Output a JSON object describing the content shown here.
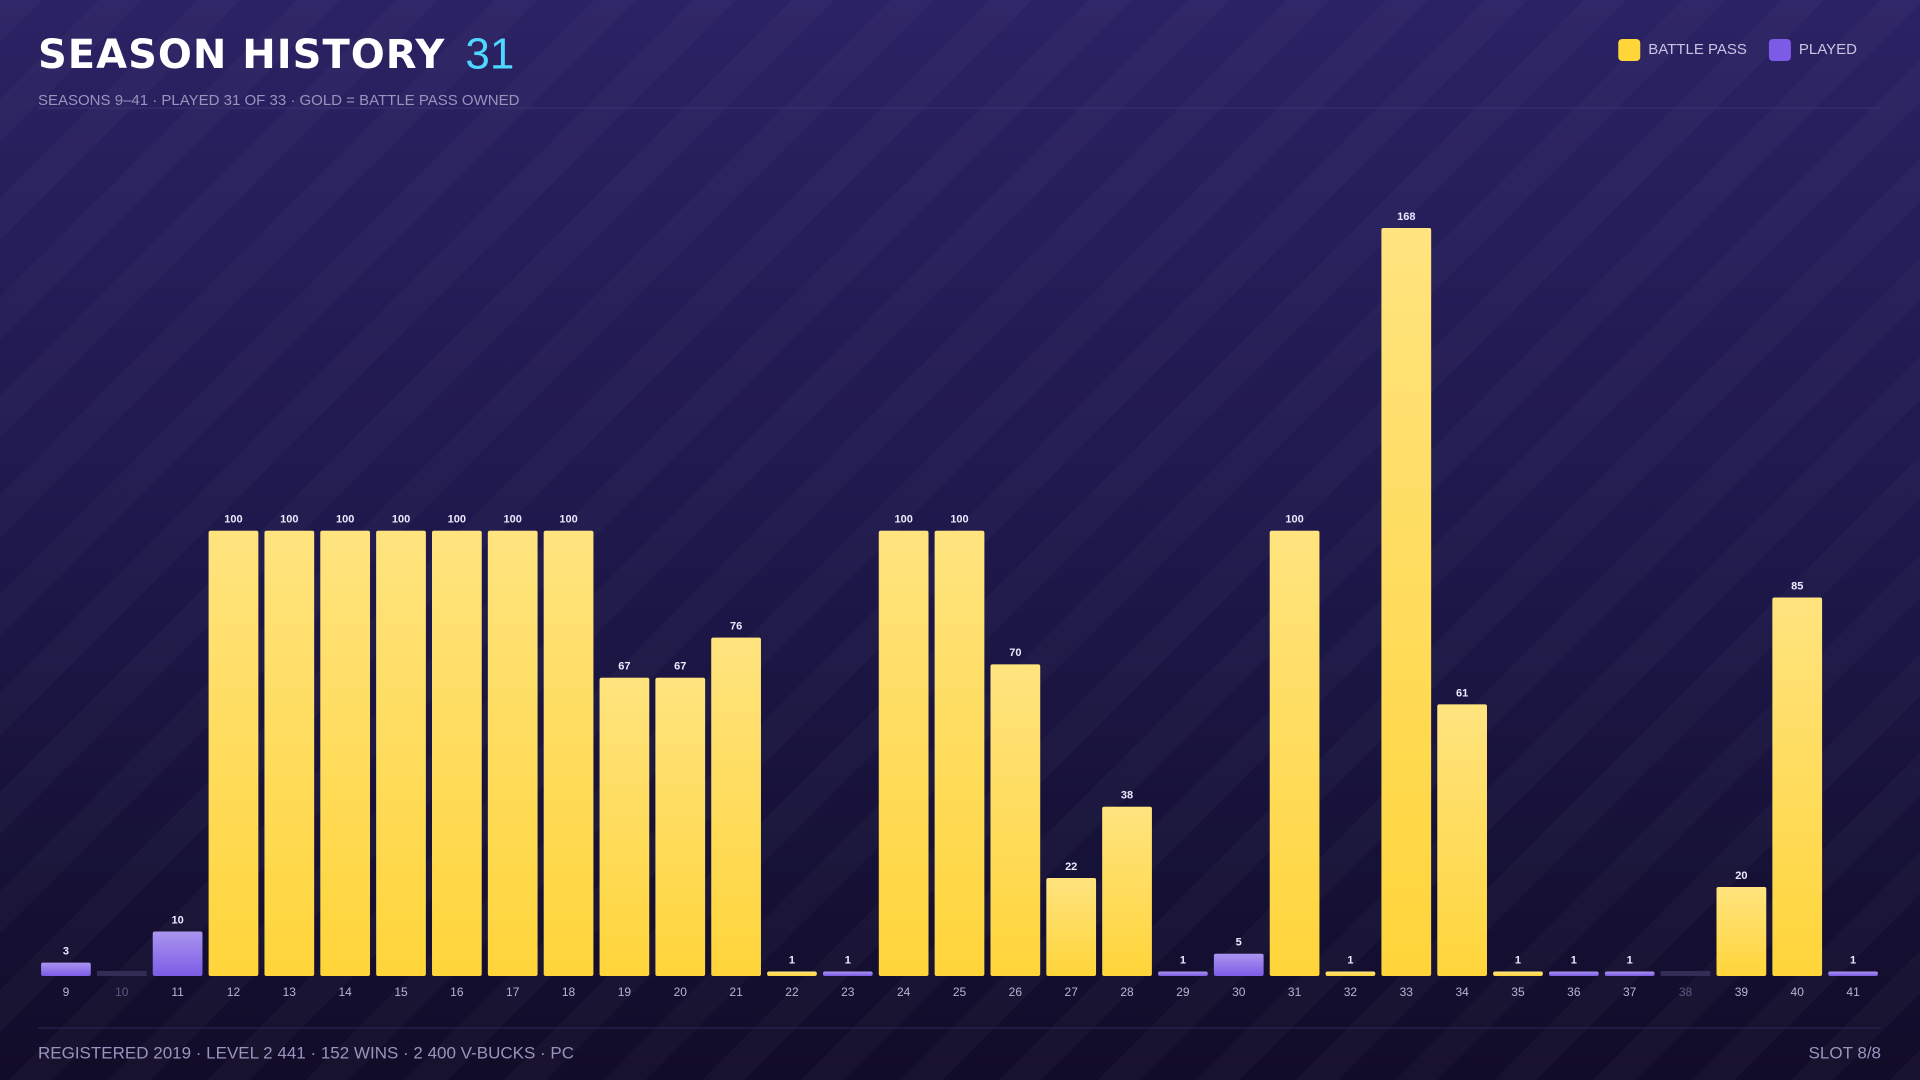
{
  "chart_data": {
    "type": "bar",
    "title": "SEASON HISTORY",
    "title_badge": "31",
    "subtitle": "SEASONS 9–41 · PLAYED 31 OF 33 · GOLD = BATTLE PASS OWNED",
    "legend": "top-right",
    "categories": [
      "9",
      "10",
      "11",
      "12",
      "13",
      "14",
      "15",
      "16",
      "17",
      "18",
      "19",
      "20",
      "21",
      "22",
      "23",
      "24",
      "25",
      "26",
      "27",
      "28",
      "29",
      "30",
      "31",
      "32",
      "33",
      "34",
      "35",
      "36",
      "37",
      "38",
      "39",
      "40",
      "41"
    ],
    "series": [
      {
        "name": "BATTLE PASS",
        "color": "#ffd53a",
        "values": [
          null,
          null,
          null,
          100,
          100,
          100,
          100,
          100,
          100,
          100,
          67,
          67,
          76,
          1,
          null,
          100,
          100,
          70,
          22,
          38,
          null,
          null,
          100,
          1,
          168,
          61,
          1,
          null,
          null,
          null,
          20,
          85,
          null
        ]
      },
      {
        "name": "PLAYED",
        "color": "#7c5ce6",
        "values": [
          3,
          null,
          10,
          null,
          null,
          null,
          null,
          null,
          null,
          null,
          null,
          null,
          null,
          null,
          1,
          null,
          null,
          null,
          null,
          null,
          1,
          5,
          null,
          null,
          null,
          null,
          null,
          1,
          1,
          null,
          null,
          null,
          1
        ]
      }
    ],
    "footer": {
      "left": "REGISTERED 2019 · LEVEL 2 441 · 152 WINS · 2 400 V-BUCKS · PC",
      "right": "SLOT 8/8"
    }
  }
}
